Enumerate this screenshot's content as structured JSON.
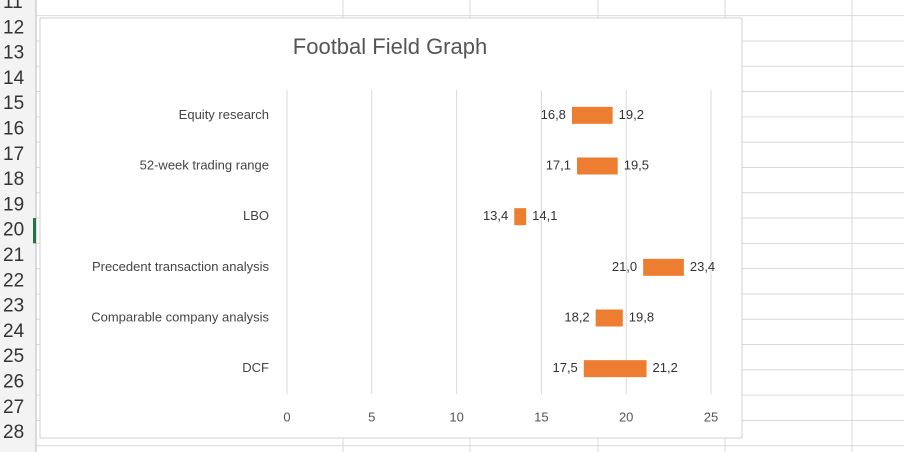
{
  "sheet": {
    "rows": [
      "11",
      "12",
      "13",
      "14",
      "15",
      "16",
      "17",
      "18",
      "19",
      "20",
      "21",
      "22",
      "23",
      "24",
      "25",
      "26",
      "27",
      "28"
    ]
  },
  "chart_data": {
    "type": "floating_bar",
    "title": "Footbal Field Graph",
    "categories": [
      "Equity research",
      "52-week trading range",
      "LBO",
      "Precedent transaction analysis",
      "Comparable company analysis",
      "DCF"
    ],
    "series": [
      {
        "values": [
          16.8,
          17.1,
          13.4,
          21.0,
          18.2,
          17.5
        ],
        "value_labels": [
          "16,8",
          "17,1",
          "13,4",
          "21,0",
          "18,2",
          "17,5"
        ]
      },
      {
        "values": [
          19.2,
          19.5,
          14.1,
          23.4,
          19.8,
          21.2
        ],
        "value_labels": [
          "19,2",
          "19,5",
          "14,1",
          "23,4",
          "19,8",
          "21,2"
        ]
      }
    ],
    "color": "#ed7d31",
    "xlim": [
      0,
      25
    ],
    "xticks": [
      0,
      5,
      10,
      15,
      20,
      25
    ],
    "grid": true
  }
}
